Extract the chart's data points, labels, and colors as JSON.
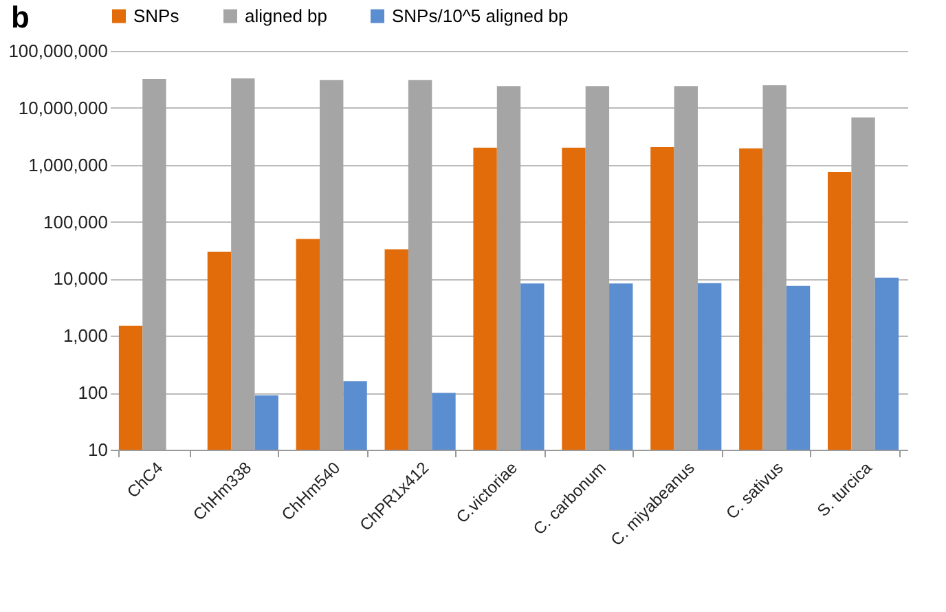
{
  "chart_data": {
    "type": "bar",
    "annotations": [
      "b"
    ],
    "categories": [
      "ChC4",
      "ChHm338",
      "ChHm540",
      "ChPR1x412",
      "C.victoriae",
      "C. carbonum",
      "C. miyabeanus",
      "C. sativus",
      "S. turcica"
    ],
    "series": [
      {
        "name": "SNPs",
        "color": "#e36c0a",
        "values": [
          1500,
          30000,
          50000,
          33000,
          2000000,
          2000000,
          2050000,
          1950000,
          750000
        ]
      },
      {
        "name": "aligned bp",
        "color": "#a5a5a5",
        "values": [
          32000000,
          33000000,
          31000000,
          31000000,
          24000000,
          24000000,
          24000000,
          25000000,
          6800000
        ]
      },
      {
        "name": "SNPs/10^5 aligned bp",
        "color": "#5b8ed0",
        "values": [
          10,
          90,
          160,
          100,
          8300,
          8300,
          8400,
          7500,
          10500
        ]
      }
    ],
    "log": "y",
    "ylim": [
      10,
      100000000
    ],
    "yticks": [
      10,
      100,
      {
        "value": 1000,
        "label": "1,000"
      },
      {
        "value": 10000,
        "label": "10,000"
      },
      {
        "value": 100000,
        "label": "100,000"
      },
      {
        "value": 1000000,
        "label": "1,000,000"
      },
      {
        "value": 10000000,
        "label": "10,000,000"
      },
      {
        "value": 100000000,
        "label": "100,000,000"
      }
    ],
    "grid": "y",
    "legend": "top"
  }
}
